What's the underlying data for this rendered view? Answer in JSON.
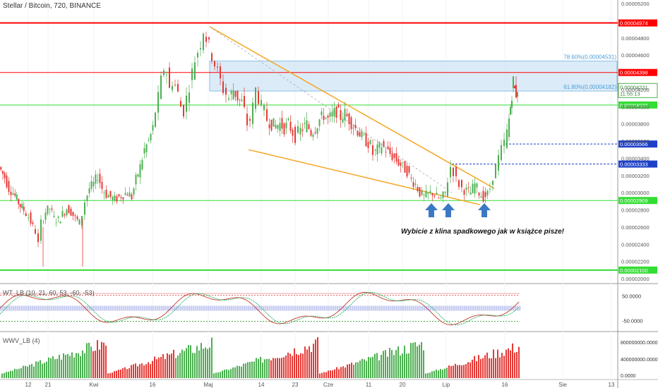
{
  "header": {
    "title": "Stellar / Bitcoin, 720, BINANCE"
  },
  "indicators": {
    "wt_label": "WT_LB (10, 21, 60, 53, -60, -53)",
    "wvv_label": "WWV_LB (4)"
  },
  "caption": "Wybicie z klina spadkowego jak w książce pisze!",
  "colors": {
    "up": "#4caf50",
    "down": "#e53935",
    "red_line": "#ff0000",
    "green_line": "#33dd33",
    "blue_line": "#1e40c8",
    "wedge": "#f5a623",
    "fib_fill": "#cfe4f5",
    "fib_text": "#4a9fd9",
    "arrow": "#3b78c4"
  },
  "chart_data": {
    "type": "candlestick",
    "y_ticks": [
      "0.00005200",
      "0.00004800",
      "0.00004600",
      "0.00004200",
      "0.00004000",
      "0.00003800",
      "0.00003600",
      "0.00003400",
      "0.00003200",
      "0.00003000",
      "0.00002800",
      "0.00002600",
      "0.00002400",
      "0.00002200",
      "0.00002000"
    ],
    "x_ticks": [
      "12",
      "21",
      "Kwi",
      "16",
      "Maj",
      "14",
      "23",
      "Cze",
      "11",
      "20",
      "Lip",
      "16",
      "Sie",
      "13"
    ],
    "horizontal_levels": [
      {
        "label": "0.00004974",
        "value": 4.974e-05,
        "color": "red",
        "thick": true
      },
      {
        "label": "0.00004398",
        "value": 4.398e-05,
        "color": "red",
        "thick": false
      },
      {
        "label": "0.00004020",
        "value": 4.02e-05,
        "color": "green",
        "thick": false
      },
      {
        "label": "0.00002909",
        "value": 2.909e-05,
        "color": "green",
        "thick": false
      },
      {
        "label": "0.00002100",
        "value": 2.1e-05,
        "color": "green",
        "thick": true
      },
      {
        "label": "0.00003566",
        "value": 3.566e-05,
        "color": "blue",
        "dashed": true
      },
      {
        "label": "0.00003333",
        "value": 3.333e-05,
        "color": "blue",
        "dashed": true
      }
    ],
    "current_price": {
      "label": "0.00004221",
      "value": 4.221e-05,
      "timer": "11:55:13"
    },
    "fib_levels": [
      {
        "label": "78.60%(0.00004531)",
        "value": 4.531e-05
      },
      {
        "label": "61.80%(0.00004182)",
        "value": 4.182e-05
      }
    ],
    "price_path": [
      [
        0,
        3.3e-05
      ],
      [
        8,
        3.18e-05
      ],
      [
        14,
        3.05e-05
      ],
      [
        20,
        3e-05
      ],
      [
        25,
        2.92e-05
      ],
      [
        30,
        2.85e-05
      ],
      [
        35,
        2.8e-05
      ],
      [
        42,
        2.72e-05
      ],
      [
        48,
        2.6e-05
      ],
      [
        52,
        2.55e-05
      ],
      [
        56,
        2.4e-05
      ],
      [
        60,
        2.65e-05
      ],
      [
        66,
        2.78e-05
      ],
      [
        72,
        2.82e-05
      ],
      [
        78,
        2.7e-05
      ],
      [
        84,
        2.68e-05
      ],
      [
        90,
        2.75e-05
      ],
      [
        96,
        2.82e-05
      ],
      [
        102,
        2.78e-05
      ],
      [
        108,
        2.7e-05
      ],
      [
        114,
        2.65e-05
      ],
      [
        118,
        2.75e-05
      ],
      [
        122,
        2.9e-05
      ],
      [
        128,
        3.05e-05
      ],
      [
        134,
        3.1e-05
      ],
      [
        140,
        3.2e-05
      ],
      [
        146,
        3.05e-05
      ],
      [
        152,
        2.98e-05
      ],
      [
        158,
        2.95e-05
      ],
      [
        164,
        2.92e-05
      ],
      [
        170,
        2.95e-05
      ],
      [
        176,
        2.98e-05
      ],
      [
        182,
        3e-05
      ],
      [
        188,
        2.95e-05
      ],
      [
        194,
        3.15e-05
      ],
      [
        200,
        3.3e-05
      ],
      [
        206,
        3.5e-05
      ],
      [
        212,
        3.6e-05
      ],
      [
        218,
        3.75e-05
      ],
      [
        222,
        3.95e-05
      ],
      [
        226,
        4.1e-05
      ],
      [
        230,
        4.3e-05
      ],
      [
        234,
        4.45e-05
      ],
      [
        238,
        4.4e-05
      ],
      [
        242,
        4.2e-05
      ],
      [
        246,
        4.3e-05
      ],
      [
        250,
        4.25e-05
      ],
      [
        254,
        4.15e-05
      ],
      [
        258,
        4e-05
      ],
      [
        262,
        3.95e-05
      ],
      [
        266,
        4.1e-05
      ],
      [
        270,
        4.25e-05
      ],
      [
        274,
        4.4e-05
      ],
      [
        278,
        4.55e-05
      ],
      [
        282,
        4.65e-05
      ],
      [
        286,
        4.75e-05
      ],
      [
        290,
        4.9e-05
      ],
      [
        294,
        4.8e-05
      ],
      [
        298,
        4.7e-05
      ],
      [
        302,
        4.6e-05
      ],
      [
        306,
        4.5e-05
      ],
      [
        310,
        4.4e-05
      ],
      [
        314,
        4.3e-05
      ],
      [
        318,
        4.2e-05
      ],
      [
        322,
        4.15e-05
      ],
      [
        326,
        4.1e-05
      ],
      [
        332,
        4.2e-05
      ],
      [
        338,
        4.1e-05
      ],
      [
        344,
        4.05e-05
      ],
      [
        348,
        3.95e-05
      ],
      [
        352,
        3.8e-05
      ],
      [
        356,
        3.85e-05
      ],
      [
        360,
        4e-05
      ],
      [
        364,
        4.2e-05
      ],
      [
        368,
        4.1e-05
      ],
      [
        372,
        4e-05
      ],
      [
        376,
        3.95e-05
      ],
      [
        380,
        3.85e-05
      ],
      [
        386,
        3.8e-05
      ],
      [
        392,
        3.78e-05
      ],
      [
        398,
        3.8e-05
      ],
      [
        404,
        3.75e-05
      ],
      [
        410,
        3.8e-05
      ],
      [
        416,
        3.7e-05
      ],
      [
        420,
        3.65e-05
      ],
      [
        424,
        3.7e-05
      ],
      [
        430,
        3.75e-05
      ],
      [
        436,
        3.8e-05
      ],
      [
        442,
        3.7e-05
      ],
      [
        448,
        3.75e-05
      ],
      [
        454,
        3.85e-05
      ],
      [
        460,
        3.9e-05
      ],
      [
        466,
        3.85e-05
      ],
      [
        472,
        3.9e-05
      ],
      [
        478,
        3.95e-05
      ],
      [
        484,
        3.88e-05
      ],
      [
        490,
        3.92e-05
      ],
      [
        496,
        3.85e-05
      ],
      [
        502,
        3.78e-05
      ],
      [
        508,
        3.72e-05
      ],
      [
        514,
        3.65e-05
      ],
      [
        520,
        3.6e-05
      ],
      [
        526,
        3.55e-05
      ],
      [
        530,
        3.45e-05
      ],
      [
        536,
        3.5e-05
      ],
      [
        542,
        3.55e-05
      ],
      [
        548,
        3.5e-05
      ],
      [
        554,
        3.45e-05
      ],
      [
        560,
        3.4e-05
      ],
      [
        566,
        3.35e-05
      ],
      [
        572,
        3.3e-05
      ],
      [
        578,
        3.25e-05
      ],
      [
        584,
        3.15e-05
      ],
      [
        590,
        3.1e-05
      ],
      [
        596,
        3e-05
      ],
      [
        602,
        2.95e-05
      ],
      [
        608,
        2.98e-05
      ],
      [
        614,
        3e-05
      ],
      [
        620,
        2.95e-05
      ],
      [
        626,
        2.92e-05
      ],
      [
        632,
        3e-05
      ],
      [
        636,
        3.15e-05
      ],
      [
        640,
        3.3e-05
      ],
      [
        644,
        3.25e-05
      ],
      [
        648,
        3.15e-05
      ],
      [
        652,
        3.1e-05
      ],
      [
        656,
        3.05e-05
      ],
      [
        662,
        3.02e-05
      ],
      [
        668,
        3e-05
      ],
      [
        674,
        3.1e-05
      ],
      [
        680,
        3e-05
      ],
      [
        686,
        2.95e-05
      ],
      [
        692,
        2.98e-05
      ],
      [
        696,
        3.05e-05
      ],
      [
        700,
        3.2e-05
      ],
      [
        704,
        3.3e-05
      ],
      [
        708,
        3.4e-05
      ],
      [
        712,
        3.5e-05
      ],
      [
        716,
        3.58e-05
      ],
      [
        720,
        3.7e-05
      ],
      [
        722,
        3.85e-05
      ],
      [
        724,
        4e-05
      ],
      [
        726,
        4.15e-05
      ],
      [
        728,
        4.3e-05
      ],
      [
        730,
        4.2e-05
      ],
      [
        732,
        4.15e-05
      ],
      [
        734,
        4.22e-05
      ]
    ]
  }
}
